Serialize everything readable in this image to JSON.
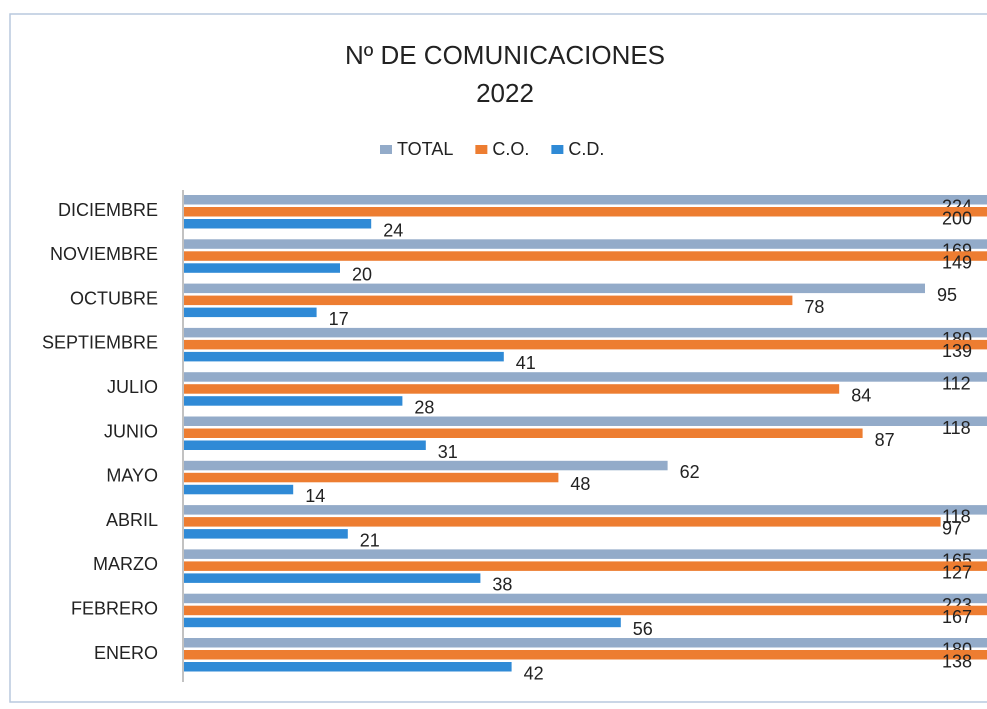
{
  "chart_data": {
    "type": "bar",
    "orientation": "horizontal",
    "title": "Nº DE COMUNICACIONES",
    "subtitle": "2022",
    "categories": [
      "DICIEMBRE",
      "NOVIEMBRE",
      "OCTUBRE",
      "SEPTIEMBRE",
      "JULIO",
      "JUNIO",
      "MAYO",
      "ABRIL",
      "MARZO",
      "FEBRERO",
      "ENERO"
    ],
    "series": [
      {
        "name": "TOTAL",
        "color": "#93abc9",
        "values": [
          224,
          169,
          95,
          180,
          112,
          118,
          62,
          118,
          165,
          223,
          180
        ]
      },
      {
        "name": "C.O.",
        "color": "#ed7d31",
        "values": [
          200,
          149,
          78,
          139,
          84,
          87,
          48,
          97,
          127,
          167,
          138
        ]
      },
      {
        "name": "C.D.",
        "color": "#2f8ad6",
        "values": [
          24,
          20,
          17,
          41,
          28,
          31,
          14,
          21,
          38,
          56,
          42
        ]
      }
    ],
    "legend": "top"
  }
}
